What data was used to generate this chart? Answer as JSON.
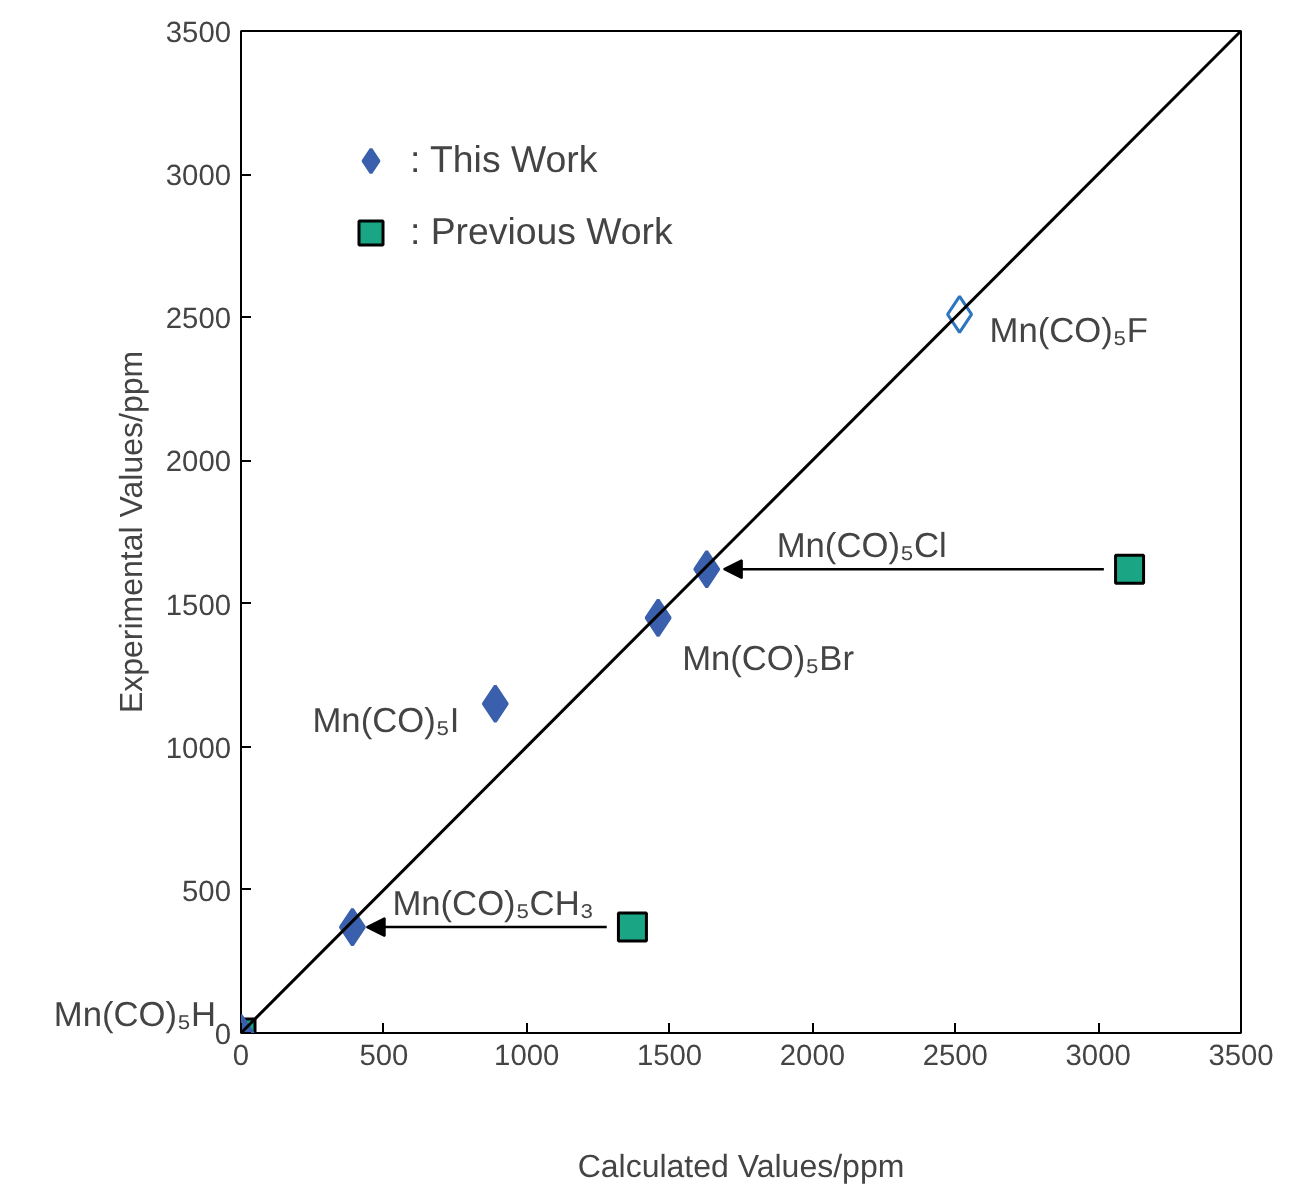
{
  "chart_data": {
    "type": "scatter",
    "xlabel": "Calculated Values/ppm",
    "ylabel": "Experimental Values/ppm",
    "xlim": [
      0,
      3500
    ],
    "ylim": [
      0,
      3500
    ],
    "xticks": [
      0,
      500,
      1000,
      1500,
      2000,
      2500,
      3000,
      3500
    ],
    "yticks": [
      0,
      500,
      1000,
      1500,
      2000,
      2500,
      3000,
      3500
    ],
    "grid": false,
    "legend": "top left",
    "series": [
      {
        "name": ": This Work",
        "color": "#3a5fad",
        "marker": "diamond",
        "x": [
          0,
          390,
          890,
          1460,
          1630
        ],
        "values": [
          0,
          370,
          1150,
          1450,
          1620
        ]
      },
      {
        "name": ": Previous Work",
        "color": "#1aa585",
        "marker": "square",
        "x": [
          0,
          1370,
          3110
        ],
        "values": [
          0,
          370,
          1620
        ]
      },
      {
        "color": "#2e75c0",
        "marker": "diamond_open",
        "x": [
          2515
        ],
        "values": [
          2510
        ]
      },
      {
        "type": "line",
        "marker": "none",
        "color": "#000000",
        "x": [
          0,
          3500
        ],
        "values": [
          0,
          3500
        ]
      }
    ],
    "annotations": [
      {
        "text": "Mn(CO)₅H",
        "x": 0,
        "y": 0
      },
      {
        "text": "Mn(CO)₅CH₃",
        "x": 390,
        "y": 370
      },
      {
        "text": "Mn(CO)₅I",
        "x": 890,
        "y": 1150
      },
      {
        "text": "Mn(CO)₅Br",
        "x": 1460,
        "y": 1450
      },
      {
        "text": "Mn(CO)₅Cl",
        "x": 1630,
        "y": 1620
      },
      {
        "text": "Mn(CO)₅F",
        "x": 2515,
        "y": 2510
      }
    ]
  }
}
